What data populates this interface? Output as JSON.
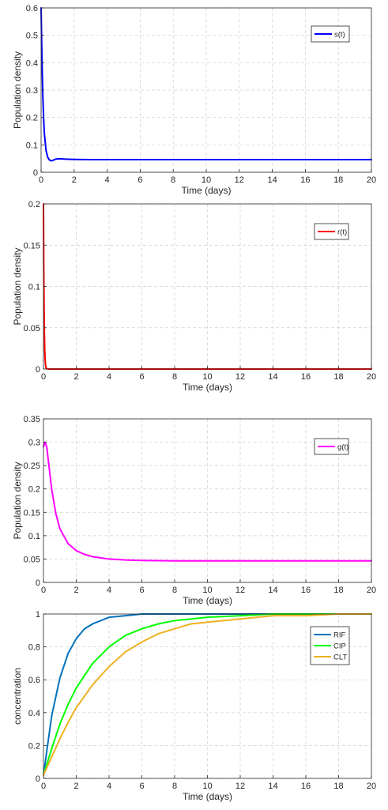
{
  "chart_data": [
    {
      "type": "line",
      "title": "",
      "xlabel": "Time (days)",
      "ylabel": "Population density",
      "xlim": [
        0,
        20
      ],
      "ylim": [
        0,
        0.6
      ],
      "xticks": [
        0,
        2,
        4,
        6,
        8,
        10,
        12,
        14,
        16,
        18,
        20
      ],
      "yticks": [
        0,
        0.1,
        0.2,
        0.3,
        0.4,
        0.5,
        0.6
      ],
      "ytick_labels": [
        "0",
        "0.1",
        "0.2",
        "0.3",
        "0.4",
        "0.5",
        "0.6"
      ],
      "grid": true,
      "legend": "top-right",
      "series": [
        {
          "name": "s(t)",
          "color": "#0000ff",
          "x": [
            0,
            0.05,
            0.1,
            0.15,
            0.2,
            0.3,
            0.4,
            0.5,
            0.6,
            0.7,
            0.8,
            0.9,
            1,
            1.2,
            1.5,
            2,
            3,
            4,
            6,
            10,
            15,
            20
          ],
          "y": [
            0.6,
            0.42,
            0.29,
            0.2,
            0.14,
            0.08,
            0.055,
            0.045,
            0.042,
            0.043,
            0.046,
            0.048,
            0.049,
            0.049,
            0.048,
            0.047,
            0.046,
            0.046,
            0.046,
            0.046,
            0.046,
            0.046
          ]
        }
      ]
    },
    {
      "type": "line",
      "title": "",
      "xlabel": "Time (days)",
      "ylabel": "Population density",
      "xlim": [
        0,
        20
      ],
      "ylim": [
        0,
        0.2
      ],
      "xticks": [
        0,
        2,
        4,
        6,
        8,
        10,
        12,
        14,
        16,
        18,
        20
      ],
      "yticks": [
        0,
        0.05,
        0.1,
        0.15,
        0.2
      ],
      "ytick_labels": [
        "0",
        "0.05",
        "0.1",
        "0.15",
        "0.2"
      ],
      "grid": true,
      "legend": "top-right",
      "series": [
        {
          "name": "r(t)",
          "color": "#ff0000",
          "x": [
            0,
            0.02,
            0.04,
            0.06,
            0.08,
            0.1,
            0.12,
            0.15,
            0.2,
            0.3,
            0.5,
            1,
            5,
            10,
            20
          ],
          "y": [
            0.2,
            0.12,
            0.07,
            0.04,
            0.022,
            0.012,
            0.006,
            0.002,
            0.0004,
            0,
            0,
            0,
            0,
            0,
            0
          ]
        }
      ]
    },
    {
      "type": "line",
      "title": "",
      "xlabel": "Time (days)",
      "ylabel": "Population density",
      "xlim": [
        0,
        20
      ],
      "ylim": [
        0,
        0.35
      ],
      "xticks": [
        0,
        2,
        4,
        6,
        8,
        10,
        12,
        14,
        16,
        18,
        20
      ],
      "yticks": [
        0,
        0.05,
        0.1,
        0.15,
        0.2,
        0.25,
        0.3,
        0.35
      ],
      "ytick_labels": [
        "0",
        "0.05",
        "0.1",
        "0.15",
        "0.2",
        "0.25",
        "0.3",
        "0.35"
      ],
      "grid": true,
      "legend": "top-right",
      "series": [
        {
          "name": "g(t)",
          "color": "#ff00ff",
          "x": [
            0,
            0.1,
            0.2,
            0.3,
            0.5,
            0.75,
            1,
            1.5,
            2,
            2.5,
            3,
            4,
            5,
            6,
            8,
            10,
            14,
            20
          ],
          "y": [
            0.29,
            0.3,
            0.29,
            0.26,
            0.2,
            0.148,
            0.115,
            0.083,
            0.068,
            0.06,
            0.055,
            0.05,
            0.048,
            0.047,
            0.046,
            0.046,
            0.046,
            0.046
          ]
        }
      ]
    },
    {
      "type": "line",
      "title": "",
      "xlabel": "Time (days)",
      "ylabel": "concentration",
      "xlim": [
        0,
        20
      ],
      "ylim": [
        0,
        1
      ],
      "xticks": [
        0,
        2,
        4,
        6,
        8,
        10,
        12,
        14,
        16,
        18,
        20
      ],
      "yticks": [
        0,
        0.2,
        0.4,
        0.6,
        0.8,
        1
      ],
      "ytick_labels": [
        "0",
        "0.2",
        "0.4",
        "0.6",
        "0.8",
        "1"
      ],
      "grid": true,
      "legend": "top-right",
      "series": [
        {
          "name": "RIF",
          "color": "#0072bd",
          "x": [
            0,
            0.5,
            1,
            1.5,
            2,
            2.5,
            3,
            4,
            5,
            6,
            7,
            8,
            10,
            12,
            14,
            16,
            18,
            20
          ],
          "y": [
            0.02,
            0.38,
            0.61,
            0.76,
            0.85,
            0.91,
            0.94,
            0.98,
            0.99,
            1,
            1,
            1,
            1,
            1,
            1,
            1,
            1,
            1
          ]
        },
        {
          "name": "CIP",
          "color": "#00ff00",
          "x": [
            0,
            0.5,
            1,
            1.5,
            2,
            3,
            4,
            5,
            6,
            7,
            8,
            9,
            10,
            12,
            14,
            16,
            18,
            20
          ],
          "y": [
            0.02,
            0.18,
            0.33,
            0.45,
            0.55,
            0.7,
            0.8,
            0.87,
            0.91,
            0.94,
            0.96,
            0.97,
            0.98,
            0.99,
            1,
            1,
            1,
            1
          ]
        },
        {
          "name": "CLT",
          "color": "#edb120",
          "x": [
            0,
            0.5,
            1,
            1.5,
            2,
            3,
            4,
            5,
            6,
            7,
            8,
            9,
            10,
            12,
            14,
            16,
            18,
            20
          ],
          "y": [
            0.02,
            0.13,
            0.24,
            0.34,
            0.43,
            0.57,
            0.68,
            0.77,
            0.83,
            0.88,
            0.91,
            0.94,
            0.95,
            0.97,
            0.99,
            0.99,
            1,
            1
          ]
        }
      ]
    }
  ]
}
